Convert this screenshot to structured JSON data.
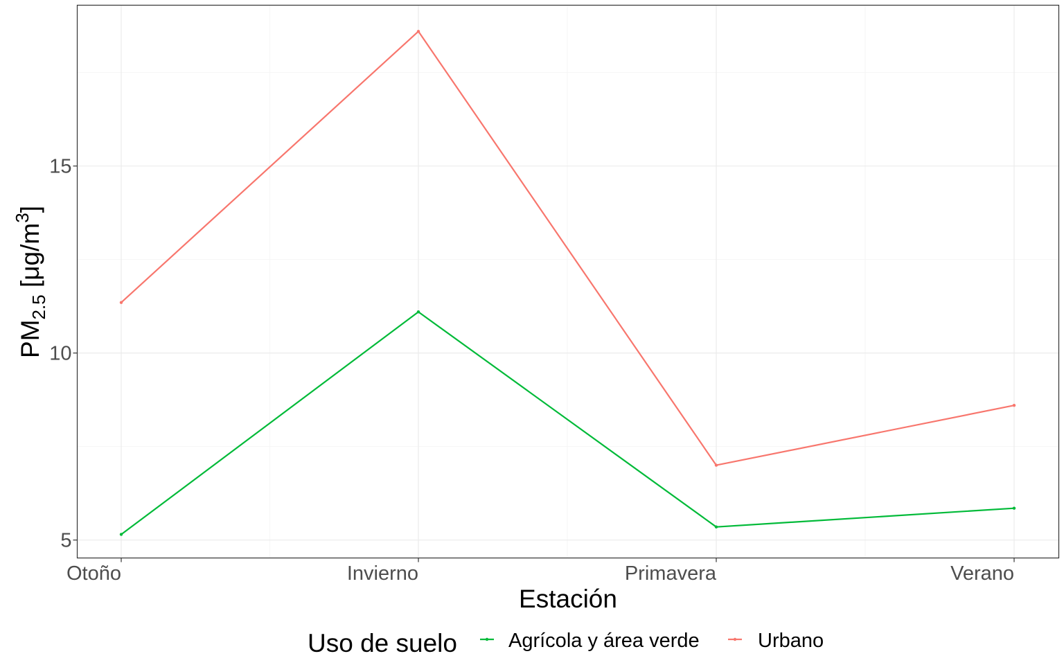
{
  "chart_data": {
    "type": "line",
    "categories": [
      "Otoño",
      "Invierno",
      "Primavera",
      "Verano"
    ],
    "series": [
      {
        "name": "Agrícola y área verde",
        "color": "#00BA38",
        "values": [
          5.15,
          11.1,
          5.35,
          5.85
        ]
      },
      {
        "name": "Urbano",
        "color": "#F8766D",
        "values": [
          11.35,
          18.6,
          7.0,
          8.6
        ]
      }
    ],
    "xlabel": "Estación",
    "ylabel": {
      "prefix": "PM",
      "subscript": "2.5",
      "unit_open": " [μg/m",
      "superscript": "3",
      "unit_close": "]"
    },
    "yticks": [
      5,
      10,
      15
    ],
    "ylim": [
      4.52,
      19.3
    ],
    "grid": true,
    "legend": {
      "title": "Uso de suelo",
      "placement": "bottom"
    }
  }
}
